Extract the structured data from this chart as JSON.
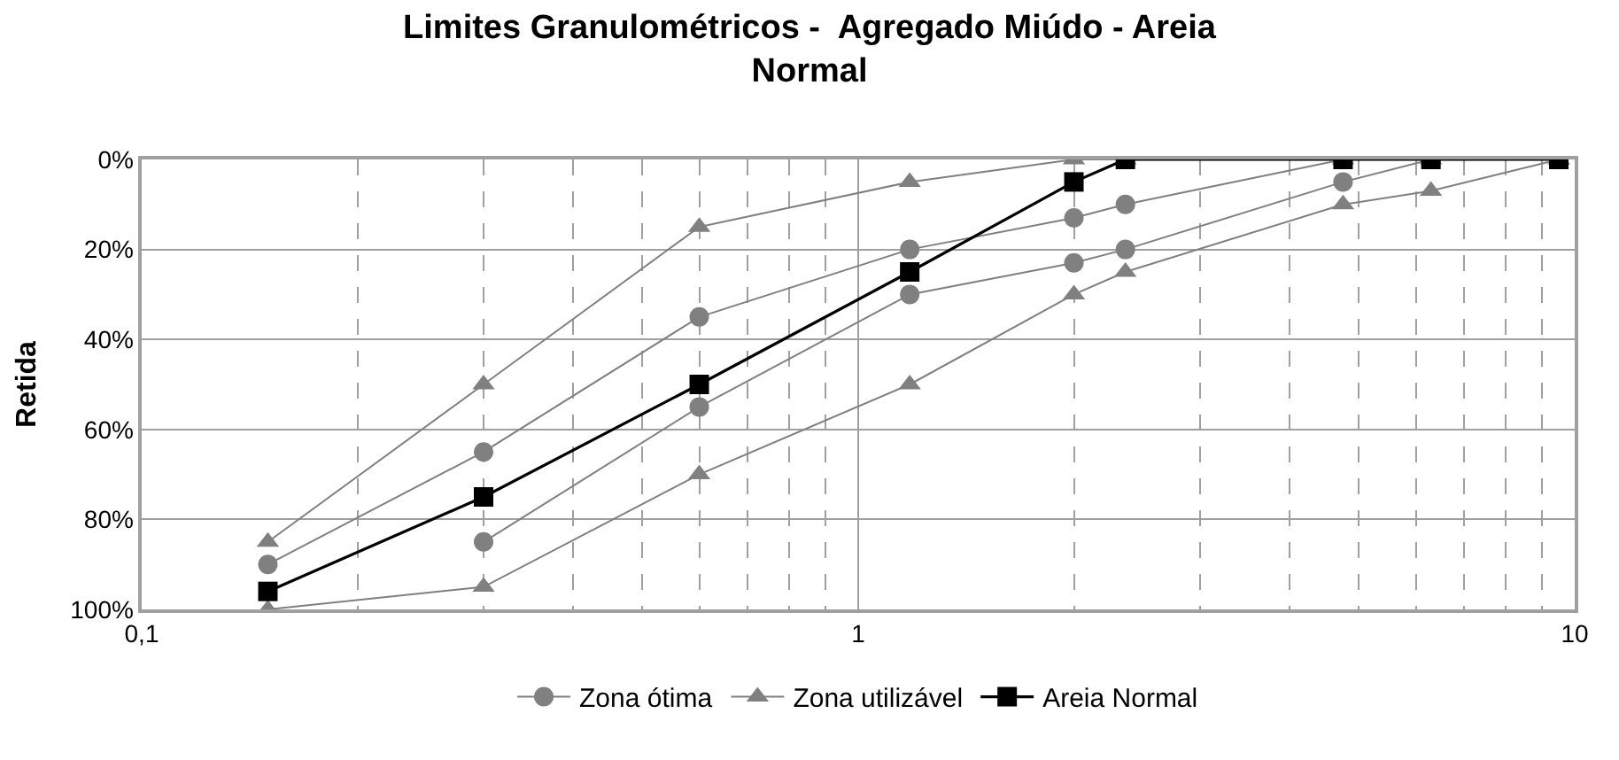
{
  "chart_data": {
    "type": "line",
    "title": "Limites Granulométricos -  Agregado Miúdo - Areia Normal",
    "ylabel": "Retida",
    "x": [
      0.15,
      0.3,
      0.6,
      1.18,
      2.0,
      2.36,
      4.75,
      6.3,
      9.5
    ],
    "series": [
      {
        "name": "Zona ótima",
        "color": "#808080",
        "marker": "circle",
        "values": [
          90,
          65,
          35,
          20,
          13,
          10,
          0,
          0,
          0
        ]
      },
      {
        "color": "#808080",
        "marker": "circle",
        "values": [
          null,
          85,
          55,
          30,
          23,
          20,
          5,
          0,
          0
        ]
      },
      {
        "name": "Zona utilizável",
        "color": "#808080",
        "marker": "triangle",
        "values": [
          85,
          50,
          15,
          5,
          0,
          0,
          0,
          0,
          0
        ]
      },
      {
        "color": "#808080",
        "marker": "triangle",
        "values": [
          100,
          95,
          70,
          50,
          30,
          25,
          10,
          7,
          0
        ]
      },
      {
        "name": "Areia Normal",
        "color": "#000000",
        "marker": "square",
        "values": [
          96,
          75,
          50,
          25,
          5,
          0,
          0,
          0,
          0
        ]
      }
    ],
    "log": "x",
    "xlim": [
      0.1,
      10
    ],
    "xticks": [
      {
        "value": 0.1,
        "label": "0,1"
      },
      1,
      10
    ],
    "ylim": [
      100,
      0
    ],
    "yticks": [
      {
        "value": 0,
        "label": "0%"
      },
      {
        "value": 20,
        "label": "20%"
      },
      {
        "value": 40,
        "label": "40%"
      },
      {
        "value": 60,
        "label": "60%"
      },
      {
        "value": 80,
        "label": "80%"
      },
      {
        "value": 100,
        "label": "100%"
      }
    ],
    "grid": true,
    "legend": "bottom"
  }
}
